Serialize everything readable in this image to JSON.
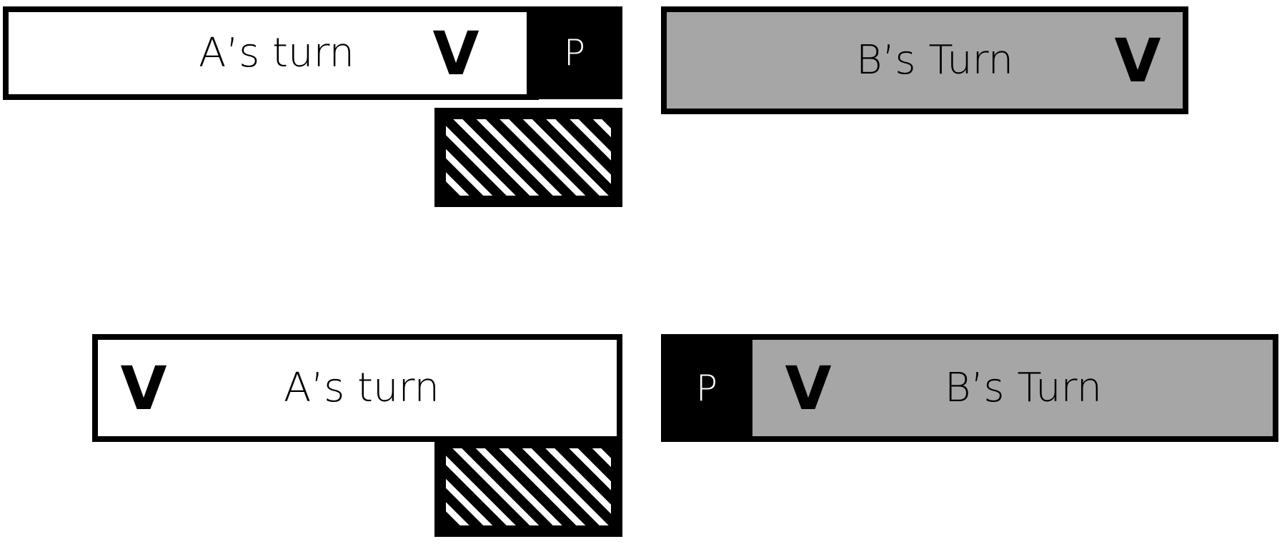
{
  "colors": {
    "border": "#000000",
    "white_fill": "#ffffff",
    "gray_fill": "#a6a6a6",
    "block": "#000000"
  },
  "top": {
    "a_bar": {
      "label": "A’s turn",
      "marker": "V"
    },
    "p_block": {
      "label": "P"
    },
    "hatch": {
      "pattern": "diagonal-stripes"
    },
    "b_bar": {
      "label": "B’s Turn",
      "marker": "V"
    }
  },
  "bottom": {
    "a_bar": {
      "label": "A’s turn",
      "marker": "V"
    },
    "hatch": {
      "pattern": "diagonal-stripes"
    },
    "p_block": {
      "label": "P"
    },
    "b_bar": {
      "label": "B’s Turn",
      "marker": "V"
    }
  }
}
